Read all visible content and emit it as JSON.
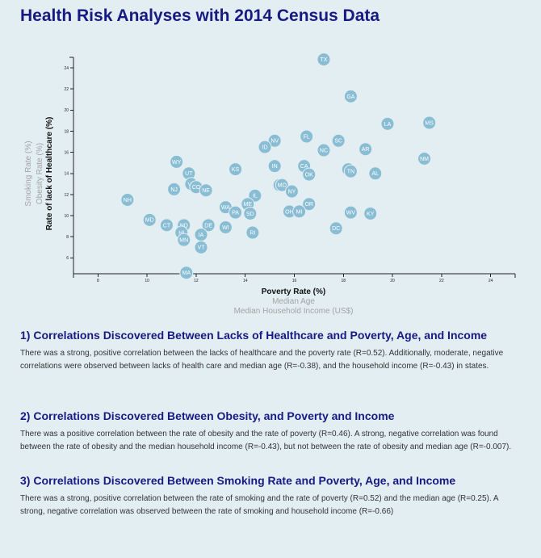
{
  "page_title": "Health Risk Analyses with 2014 Census Data",
  "chart_data": {
    "type": "scatter",
    "x_axis": {
      "domain": [
        7,
        25
      ],
      "ticks": [
        8,
        10,
        12,
        14,
        16,
        18,
        20,
        22,
        24
      ],
      "labels": [
        {
          "text": "Poverty Rate (%)",
          "active": true
        },
        {
          "text": "Median Age",
          "active": false
        },
        {
          "text": "Median Household Income (US$)",
          "active": false
        }
      ]
    },
    "y_axis": {
      "domain": [
        4.5,
        25
      ],
      "ticks": [
        6,
        8,
        10,
        12,
        14,
        16,
        18,
        20,
        22,
        24
      ],
      "labels": [
        {
          "text": "Rate of lack of Healthcare (%)",
          "active": true
        },
        {
          "text": "Obesity Rate (%)",
          "active": false
        },
        {
          "text": "Smoking Rate (%)",
          "active": false
        }
      ]
    },
    "points": [
      {
        "abbr": "TX",
        "x": 17.2,
        "y": 24.8
      },
      {
        "abbr": "GA",
        "x": 18.3,
        "y": 21.3
      },
      {
        "abbr": "LA",
        "x": 19.8,
        "y": 18.7
      },
      {
        "abbr": "MS",
        "x": 21.5,
        "y": 18.8
      },
      {
        "abbr": "FL",
        "x": 16.5,
        "y": 17.5
      },
      {
        "abbr": "NV",
        "x": 15.2,
        "y": 17.1
      },
      {
        "abbr": "SC",
        "x": 17.8,
        "y": 17.1
      },
      {
        "abbr": "ID",
        "x": 14.8,
        "y": 16.5
      },
      {
        "abbr": "NC",
        "x": 17.2,
        "y": 16.2
      },
      {
        "abbr": "AR",
        "x": 18.9,
        "y": 16.3
      },
      {
        "abbr": "NM",
        "x": 21.3,
        "y": 15.4
      },
      {
        "abbr": "AK",
        "x": 11.2,
        "y": 15.1
      },
      {
        "abbr": "WY",
        "x": 11.2,
        "y": 15.1
      },
      {
        "abbr": "IN",
        "x": 15.2,
        "y": 14.7
      },
      {
        "abbr": "CA",
        "x": 16.4,
        "y": 14.7
      },
      {
        "abbr": "KS",
        "x": 13.6,
        "y": 14.4
      },
      {
        "abbr": "AZ",
        "x": 18.2,
        "y": 14.4
      },
      {
        "abbr": "TN",
        "x": 18.3,
        "y": 14.2
      },
      {
        "abbr": "OK",
        "x": 16.6,
        "y": 13.9
      },
      {
        "abbr": "AL",
        "x": 19.3,
        "y": 14.0
      },
      {
        "abbr": "UT",
        "x": 11.7,
        "y": 14.0
      },
      {
        "abbr": "VA",
        "x": 11.8,
        "y": 13.0
      },
      {
        "abbr": "CO",
        "x": 12.0,
        "y": 12.7
      },
      {
        "abbr": "NJ",
        "x": 11.1,
        "y": 12.5
      },
      {
        "abbr": "NE",
        "x": 12.4,
        "y": 12.4
      },
      {
        "abbr": "WA",
        "x": 15.4,
        "y": 12.9
      },
      {
        "abbr": "MO",
        "x": 15.5,
        "y": 12.9
      },
      {
        "abbr": "NY",
        "x": 15.9,
        "y": 12.3
      },
      {
        "abbr": "IL",
        "x": 14.4,
        "y": 11.9
      },
      {
        "abbr": "NH",
        "x": 9.2,
        "y": 11.5
      },
      {
        "abbr": "ME",
        "x": 14.1,
        "y": 11.1
      },
      {
        "abbr": "OR",
        "x": 16.6,
        "y": 11.1
      },
      {
        "abbr": "WA",
        "x": 13.2,
        "y": 10.8
      },
      {
        "abbr": "PA",
        "x": 13.6,
        "y": 10.3
      },
      {
        "abbr": "SD",
        "x": 14.2,
        "y": 10.2
      },
      {
        "abbr": "OH",
        "x": 15.8,
        "y": 10.4
      },
      {
        "abbr": "MI",
        "x": 16.2,
        "y": 10.4
      },
      {
        "abbr": "WV",
        "x": 18.3,
        "y": 10.3
      },
      {
        "abbr": "KY",
        "x": 19.1,
        "y": 10.2
      },
      {
        "abbr": "MD",
        "x": 10.1,
        "y": 9.6
      },
      {
        "abbr": "CT",
        "x": 10.8,
        "y": 9.1
      },
      {
        "abbr": "ND",
        "x": 11.5,
        "y": 9.1
      },
      {
        "abbr": "DE",
        "x": 12.5,
        "y": 9.1
      },
      {
        "abbr": "WI",
        "x": 13.2,
        "y": 8.9
      },
      {
        "abbr": "HI",
        "x": 11.4,
        "y": 8.4
      },
      {
        "abbr": "DC",
        "x": 17.7,
        "y": 8.8
      },
      {
        "abbr": "RI",
        "x": 14.3,
        "y": 8.4
      },
      {
        "abbr": "IA",
        "x": 12.2,
        "y": 8.2
      },
      {
        "abbr": "MN",
        "x": 11.5,
        "y": 7.7
      },
      {
        "abbr": "VT",
        "x": 12.2,
        "y": 7.0
      },
      {
        "abbr": "MA",
        "x": 11.6,
        "y": 4.6
      }
    ]
  },
  "sections": [
    {
      "heading": "1) Correlations Discovered Between Lacks of Healthcare and Poverty, Age, and Income",
      "body": "There was a strong, positive correlation between the lacks of healthcare and the poverty rate (R=0.52). Additionally, moderate, negative correlations were observed between lacks of health care and median age (R=-0.38), and the household income (R=-0.43) in states."
    },
    {
      "heading": "2) Correlations Discovered Between Obesity, and Poverty and Income",
      "body": "There was a positive correlation between the rate of obesity and the rate of poverty (R=0.46). A strong, negative correlation was found between the rate of obesity and the median household income (R=-0.43), but not between the rate of obesity and median age (R=-0.007)."
    },
    {
      "heading": "3) Correlations Discovered Between Smoking Rate and Poverty, Age, and Income",
      "body": "There was a strong, positive correlation between the rate of smoking and the rate of poverty (R=0.52) and the median age (R=0.25). A strong, negative correlation was observed between the rate of smoking and household income (R=-0.66)"
    }
  ]
}
